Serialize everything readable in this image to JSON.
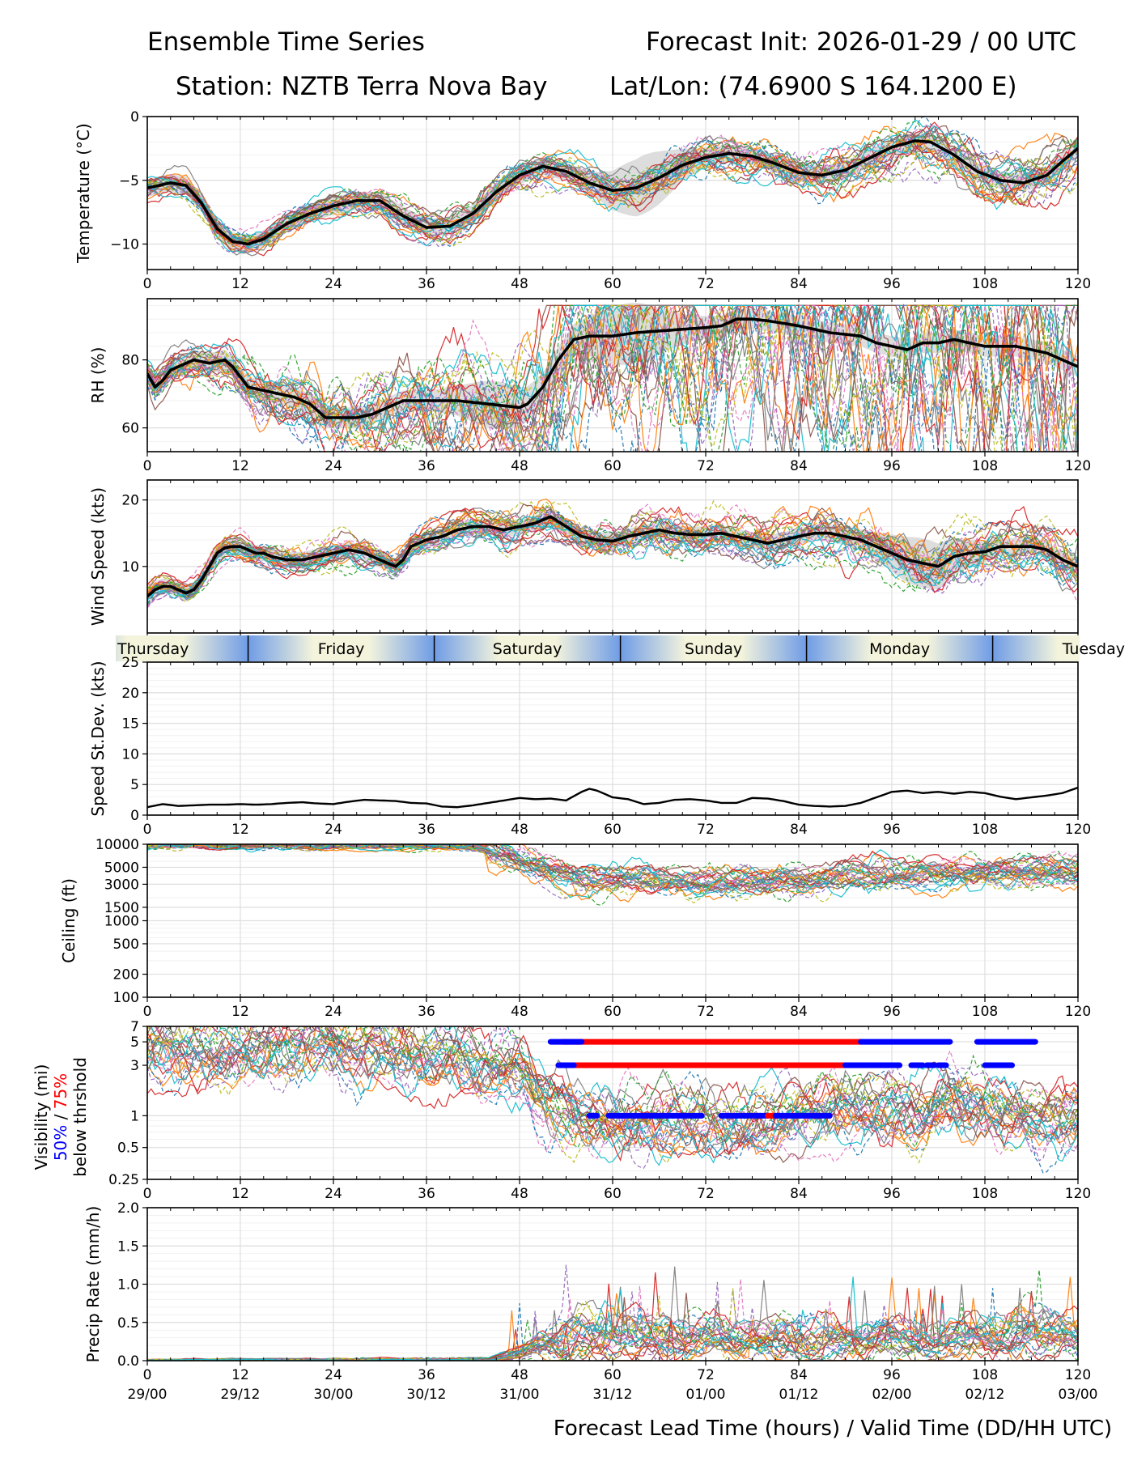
{
  "header": {
    "title_left": "Ensemble Time Series",
    "title_right": "Forecast Init: 2026-01-29 / 00 UTC",
    "station": "Station: NZTB Terra Nova Bay",
    "latlon": "Lat/Lon: (74.6900 S 164.1200 E)"
  },
  "xaxis": {
    "range": [
      0,
      120
    ],
    "ticks": [
      0,
      12,
      24,
      36,
      48,
      60,
      72,
      84,
      96,
      108,
      120
    ],
    "valid_labels": [
      "29/00",
      "29/12",
      "30/00",
      "30/12",
      "31/00",
      "31/12",
      "01/00",
      "01/12",
      "02/00",
      "02/12",
      "03/00"
    ],
    "label": "Forecast Lead Time (hours) / Valid Time (DD/HH UTC)"
  },
  "days": {
    "labels": [
      "Thursday",
      "Friday",
      "Saturday",
      "Sunday",
      "Monday",
      "Tuesday"
    ],
    "boundaries_hours": [
      13,
      37,
      61,
      85,
      109
    ],
    "label_hours": [
      1,
      25,
      49,
      73,
      97,
      120
    ]
  },
  "colors": {
    "mean": "#000000",
    "spread": "#d9d9d9",
    "vis50": "#0000ff",
    "vis75": "#ff0000",
    "members": [
      "#1f77b4",
      "#ff7f0e",
      "#2ca02c",
      "#d62728",
      "#9467bd",
      "#8c564b",
      "#e377c2",
      "#7f7f7f",
      "#bcbd22",
      "#17becf"
    ],
    "daybar_dark": "#6f9ce6",
    "daybar_light": "#f4f4dc"
  },
  "vis_legend": {
    "line1": "Visibility (mi)",
    "p50": "50%",
    "sep": " / ",
    "p75": "75%",
    "line3": "below thrshold"
  },
  "chart_data": [
    {
      "type": "line",
      "panel": "temperature",
      "ylabel": "Temperature (°C)",
      "ylim": [
        -12,
        0
      ],
      "yticks": [
        0,
        -5,
        -10
      ],
      "mean": {
        "x": [
          0,
          3,
          5,
          7,
          9,
          11,
          13,
          15,
          18,
          21,
          24,
          27,
          30,
          33,
          36,
          39,
          42,
          45,
          48,
          51,
          54,
          57,
          60,
          63,
          66,
          69,
          72,
          75,
          78,
          81,
          84,
          87,
          90,
          93,
          96,
          99,
          101,
          104,
          107,
          110,
          113,
          116,
          118,
          120
        ],
        "y": [
          -5.6,
          -5.2,
          -5.4,
          -6.8,
          -8.8,
          -9.8,
          -10.0,
          -9.6,
          -8.4,
          -7.6,
          -7.0,
          -6.6,
          -6.6,
          -7.8,
          -8.7,
          -8.6,
          -7.6,
          -5.9,
          -4.6,
          -3.9,
          -4.3,
          -5.2,
          -5.8,
          -5.6,
          -4.8,
          -3.8,
          -3.2,
          -2.9,
          -3.1,
          -3.7,
          -4.4,
          -4.6,
          -4.2,
          -3.3,
          -2.4,
          -1.9,
          -2.0,
          -3.0,
          -4.3,
          -5.0,
          -5.2,
          -4.6,
          -3.5,
          -2.5
        ]
      },
      "spread": 0.7,
      "spread_extra": [
        {
          "center": 64,
          "width": 5,
          "amount": 1.6
        }
      ]
    },
    {
      "type": "line",
      "panel": "rh",
      "ylabel": "RH (%)",
      "ylim": [
        53,
        98
      ],
      "yticks": [
        60,
        80
      ],
      "mean": {
        "x": [
          0,
          1,
          2,
          3,
          4,
          6,
          8,
          10,
          11,
          13,
          15,
          17,
          19,
          21,
          23,
          25,
          27,
          29,
          31,
          33,
          35,
          37,
          40,
          44,
          48,
          49,
          51,
          53,
          55,
          57,
          60,
          63,
          66,
          69,
          72,
          74,
          76,
          78,
          80,
          84,
          88,
          92,
          94,
          96,
          98,
          100,
          102,
          104,
          106,
          108,
          110,
          112,
          114,
          116,
          118,
          120
        ],
        "y": [
          76,
          72,
          74,
          77,
          78,
          80,
          79,
          80,
          78,
          72,
          71,
          70,
          69,
          67,
          63,
          63,
          63,
          64,
          66,
          68,
          68,
          68,
          68,
          67,
          66,
          67,
          72,
          80,
          86,
          87,
          87,
          88,
          88.5,
          89,
          89.5,
          90,
          92,
          92,
          91.5,
          90,
          88,
          87,
          85,
          84,
          83,
          85,
          85,
          86,
          85,
          84,
          84,
          84,
          83,
          82,
          80,
          78
        ]
      },
      "spread": 3,
      "spread_extra": [
        {
          "center": 62,
          "width": 6,
          "amount": 6
        },
        {
          "center": 45,
          "width": 5,
          "amount": 4
        }
      ]
    },
    {
      "type": "line",
      "panel": "wind",
      "ylabel": "Wind Speed (kts)",
      "ylim": [
        0,
        23
      ],
      "yticks": [
        10,
        20
      ],
      "mean": {
        "x": [
          0,
          1,
          2,
          3,
          4,
          5,
          6,
          7,
          8,
          9,
          10,
          11,
          12,
          13,
          14,
          15,
          16,
          18,
          20,
          22,
          24,
          26,
          28,
          30,
          31,
          32,
          33,
          34,
          36,
          38,
          40,
          42,
          44,
          46,
          48,
          50,
          51,
          52,
          54,
          56,
          58,
          60,
          62,
          64,
          66,
          68,
          70,
          72,
          74,
          76,
          78,
          80,
          82,
          84,
          86,
          88,
          90,
          92,
          94,
          96,
          98,
          100,
          102,
          104,
          106,
          108,
          110,
          112,
          114,
          116,
          118,
          120
        ],
        "y": [
          5.5,
          6.5,
          7,
          7,
          6.5,
          6,
          6.5,
          8,
          10,
          12,
          12.8,
          13,
          13,
          12.5,
          12,
          12,
          11.5,
          11,
          11,
          11.5,
          12,
          12.5,
          12,
          11,
          10.5,
          10,
          11,
          13,
          14,
          14.5,
          15.5,
          16,
          16,
          15.5,
          16,
          16.5,
          17,
          17.5,
          16,
          14.5,
          14,
          13.8,
          14.5,
          15,
          15.5,
          15,
          14.8,
          14.8,
          15,
          14.5,
          14,
          13.5,
          14,
          14.5,
          15,
          15,
          14.5,
          14,
          13,
          12,
          11,
          10.5,
          10,
          11.5,
          12,
          12.2,
          13,
          13,
          13,
          12.5,
          11,
          10
        ]
      },
      "spread": 1.2,
      "spread_extra": [
        {
          "center": 100,
          "width": 6,
          "amount": 2.5
        }
      ]
    },
    {
      "type": "line",
      "panel": "speed_stdev",
      "ylabel": "Speed St.Dev. (kts)",
      "ylim": [
        0,
        25
      ],
      "yticks": [
        0,
        5,
        10,
        15,
        20,
        25
      ],
      "mean": {
        "x": [
          0,
          2,
          4,
          6,
          8,
          10,
          12,
          14,
          16,
          18,
          20,
          22,
          24,
          26,
          28,
          30,
          32,
          34,
          36,
          38,
          40,
          42,
          44,
          46,
          48,
          50,
          52,
          54,
          56,
          57,
          58,
          60,
          62,
          64,
          66,
          68,
          70,
          72,
          74,
          76,
          78,
          80,
          82,
          84,
          86,
          88,
          90,
          92,
          94,
          96,
          98,
          100,
          102,
          104,
          106,
          108,
          110,
          112,
          114,
          116,
          118,
          120
        ],
        "y": [
          1.3,
          1.8,
          1.5,
          1.6,
          1.7,
          1.7,
          1.8,
          1.7,
          1.8,
          2.0,
          2.1,
          1.9,
          1.8,
          2.2,
          2.5,
          2.4,
          2.3,
          2.0,
          1.9,
          1.4,
          1.3,
          1.6,
          2.0,
          2.4,
          2.8,
          2.6,
          2.7,
          2.4,
          3.8,
          4.3,
          4.0,
          2.9,
          2.6,
          1.8,
          2.0,
          2.5,
          2.6,
          2.4,
          2.0,
          2.0,
          2.8,
          2.7,
          2.3,
          1.7,
          1.5,
          1.4,
          1.5,
          2.0,
          2.9,
          3.8,
          4.0,
          3.6,
          3.8,
          3.5,
          3.8,
          3.6,
          3.0,
          2.6,
          2.9,
          3.2,
          3.6,
          4.5
        ]
      }
    },
    {
      "type": "line",
      "panel": "ceiling",
      "scale": "log",
      "ylabel": "Ceiling (ft)",
      "ylim": [
        100,
        10000
      ],
      "yticks": [
        10000,
        5000,
        3000,
        1500,
        1000,
        500,
        200,
        100
      ],
      "members_envelope": {
        "x": [
          0,
          40,
          44,
          48,
          52,
          56,
          60,
          72,
          84,
          96,
          108,
          120
        ],
        "y": [
          9800,
          9500,
          8500,
          6500,
          4500,
          3600,
          3500,
          3300,
          3400,
          4200,
          4500,
          4600
        ]
      }
    },
    {
      "type": "line",
      "panel": "visibility",
      "scale": "log",
      "ylim": [
        0.25,
        7
      ],
      "yticks": [
        7,
        5,
        3,
        1,
        0.5,
        0.25
      ],
      "members_envelope": {
        "x": [
          0,
          8,
          20,
          36,
          44,
          48,
          50,
          52,
          54,
          60,
          72,
          84,
          90,
          94,
          100,
          104,
          108,
          112,
          116,
          120
        ],
        "y": [
          4.5,
          3.5,
          4.5,
          3.8,
          3.0,
          2.5,
          1.6,
          1.2,
          1.0,
          0.85,
          0.85,
          0.95,
          1.1,
          1.0,
          1.0,
          1.5,
          1.2,
          1.0,
          0.9,
          1.0
        ]
      },
      "threshold_runs": [
        {
          "threshold": 5,
          "color": "red",
          "start": 53.5,
          "end": 92
        },
        {
          "threshold": 5,
          "color": "blue",
          "start": 52,
          "end": 56
        },
        {
          "threshold": 5,
          "color": "blue",
          "start": 92,
          "end": 103.5
        },
        {
          "threshold": 5,
          "color": "blue",
          "start": 107,
          "end": 114.5
        },
        {
          "threshold": 3,
          "color": "red",
          "start": 54,
          "end": 90
        },
        {
          "threshold": 3,
          "color": "blue",
          "start": 53,
          "end": 55
        },
        {
          "threshold": 3,
          "color": "blue",
          "start": 90,
          "end": 97
        },
        {
          "threshold": 3,
          "color": "blue",
          "start": 98.5,
          "end": 100
        },
        {
          "threshold": 3,
          "color": "blue",
          "start": 100.5,
          "end": 101.5
        },
        {
          "threshold": 3,
          "color": "blue",
          "start": 102,
          "end": 103
        },
        {
          "threshold": 3,
          "color": "blue",
          "start": 108,
          "end": 111.5
        },
        {
          "threshold": 1,
          "color": "blue",
          "start": 57,
          "end": 58
        },
        {
          "threshold": 1,
          "color": "blue",
          "start": 59.5,
          "end": 71.5
        },
        {
          "threshold": 1,
          "color": "blue",
          "start": 74,
          "end": 80
        },
        {
          "threshold": 1,
          "color": "red",
          "start": 80,
          "end": 81
        },
        {
          "threshold": 1,
          "color": "blue",
          "start": 81,
          "end": 88
        }
      ]
    },
    {
      "type": "line",
      "panel": "precip",
      "ylabel": "Precip Rate (mm/h)",
      "ylim": [
        0,
        2.0
      ],
      "yticks": [
        0.0,
        0.5,
        1.0,
        1.5,
        2.0
      ],
      "members_envelope": {
        "x": [
          0,
          44,
          48,
          52,
          56,
          60,
          66,
          72,
          78,
          84,
          90,
          96,
          102,
          108,
          114,
          120
        ],
        "y": [
          0.01,
          0.02,
          0.1,
          0.25,
          0.35,
          0.35,
          0.3,
          0.28,
          0.3,
          0.32,
          0.28,
          0.3,
          0.25,
          0.3,
          0.35,
          0.3
        ]
      }
    }
  ]
}
